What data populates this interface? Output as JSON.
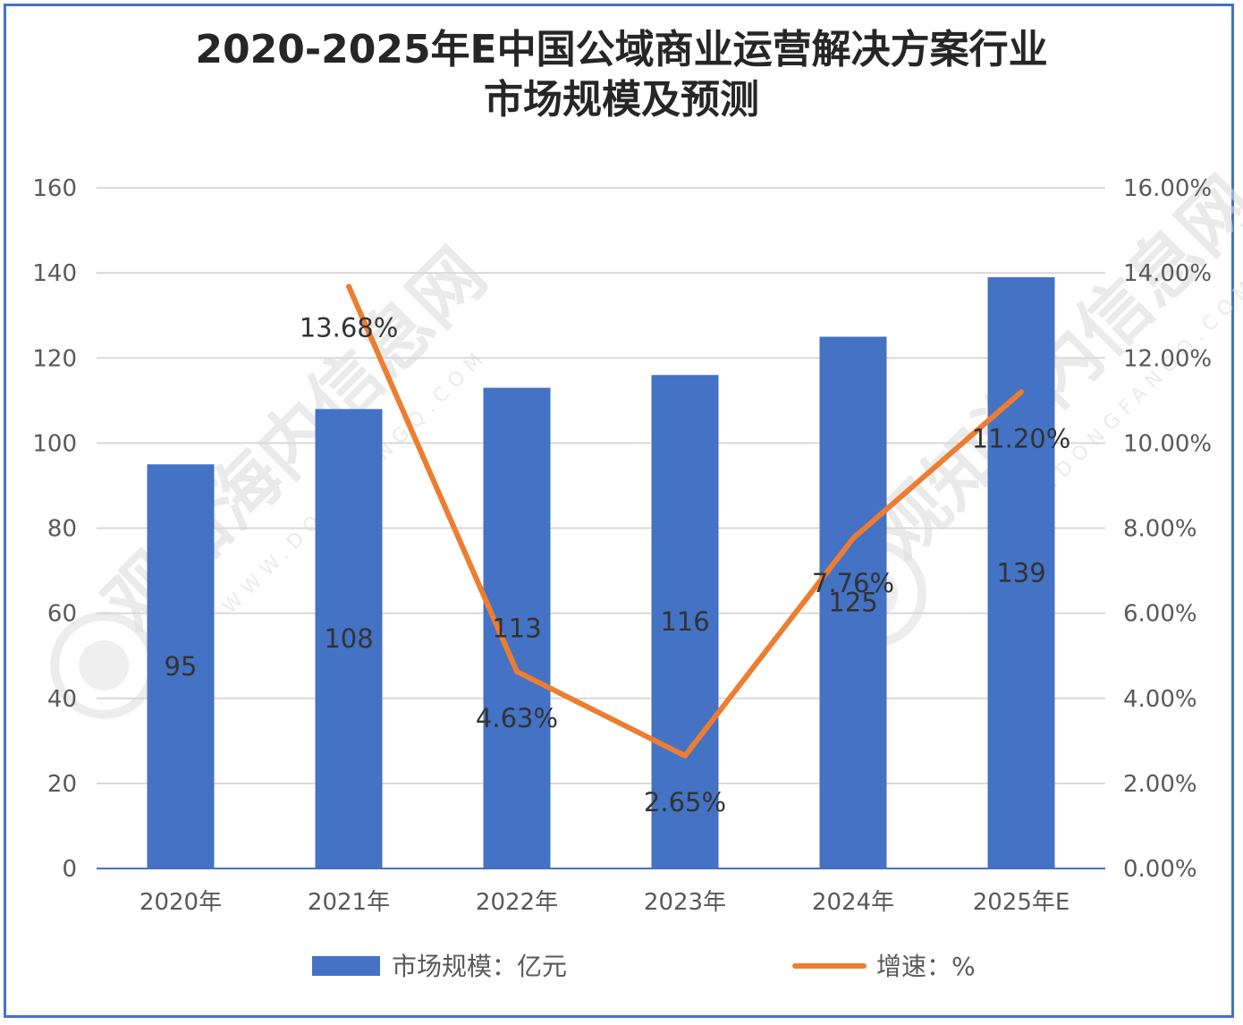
{
  "chart_data": {
    "type": "bar",
    "title_line1": "2020-2025年E中国公域商业运营解决方案行业",
    "title_line2": "市场规模及预测",
    "categories": [
      "2020年",
      "2021年",
      "2022年",
      "2023年",
      "2024年",
      "2025年E"
    ],
    "series": [
      {
        "name": "市场规模：亿元",
        "type": "bar",
        "axis": "left",
        "color": "#4472C4",
        "values": [
          95,
          108,
          113,
          116,
          125,
          139
        ],
        "labels": [
          "95",
          "108",
          "113",
          "116",
          "125",
          "139"
        ]
      },
      {
        "name": "增速：%",
        "type": "line",
        "axis": "right",
        "color": "#ED7D31",
        "values": [
          null,
          13.68,
          4.63,
          2.65,
          7.76,
          11.2
        ],
        "labels": [
          "",
          "13.68%",
          "4.63%",
          "2.65%",
          "7.76%",
          "11.20%"
        ]
      }
    ],
    "y_left": {
      "min": 0,
      "max": 160,
      "ticks": [
        "0",
        "20",
        "40",
        "60",
        "80",
        "100",
        "120",
        "140",
        "160"
      ]
    },
    "y_right": {
      "min": 0,
      "max": 16,
      "ticks": [
        "0.00%",
        "2.00%",
        "4.00%",
        "6.00%",
        "8.00%",
        "10.00%",
        "12.00%",
        "14.00%",
        "16.00%"
      ]
    },
    "grid": true,
    "legend_position": "bottom",
    "border_color": "#4472C4"
  },
  "watermark": {
    "brand": "观知海内信息网",
    "site": "WWW.DONGFANGQ.COM"
  }
}
